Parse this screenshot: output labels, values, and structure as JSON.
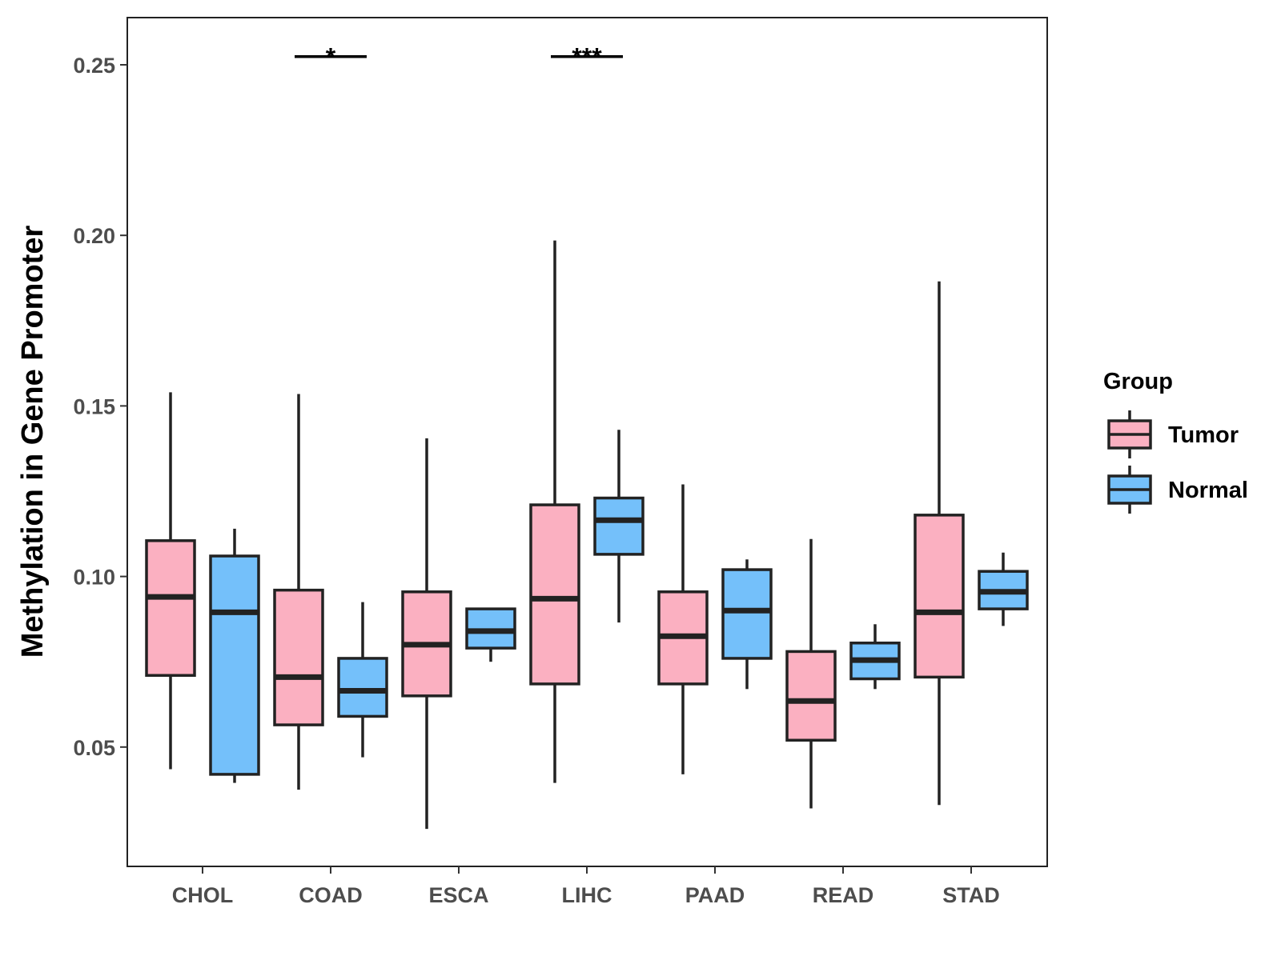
{
  "chart_data": {
    "type": "boxplot",
    "title": "",
    "xlabel": "",
    "ylabel": "Methylation in Gene Promoter",
    "ylim": [
      0.015,
      0.262
    ],
    "yticks": [
      "0.05",
      "0.10",
      "0.15",
      "0.20",
      "0.25"
    ],
    "categories": [
      "CHOL",
      "COAD",
      "ESCA",
      "LIHC",
      "PAAD",
      "READ",
      "STAD"
    ],
    "legend": {
      "title": "Group",
      "position": "right",
      "entries": [
        {
          "name": "Tumor",
          "color": "#fbb0c1"
        },
        {
          "name": "Normal",
          "color": "#74c0fa"
        }
      ]
    },
    "series": [
      {
        "name": "Tumor",
        "color": "#fbb0c1",
        "boxes": [
          {
            "category": "CHOL",
            "min": 0.0435,
            "q1": 0.071,
            "median": 0.094,
            "q3": 0.1105,
            "max": 0.154
          },
          {
            "category": "COAD",
            "min": 0.0375,
            "q1": 0.0565,
            "median": 0.0705,
            "q3": 0.096,
            "max": 0.1535
          },
          {
            "category": "ESCA",
            "min": 0.026,
            "q1": 0.065,
            "median": 0.08,
            "q3": 0.0955,
            "max": 0.1405
          },
          {
            "category": "LIHC",
            "min": 0.0395,
            "q1": 0.0685,
            "median": 0.0935,
            "q3": 0.121,
            "max": 0.1985
          },
          {
            "category": "PAAD",
            "min": 0.042,
            "q1": 0.0685,
            "median": 0.0825,
            "q3": 0.0955,
            "max": 0.127
          },
          {
            "category": "READ",
            "min": 0.032,
            "q1": 0.052,
            "median": 0.0635,
            "q3": 0.078,
            "max": 0.111
          },
          {
            "category": "STAD",
            "min": 0.033,
            "q1": 0.0705,
            "median": 0.0895,
            "q3": 0.118,
            "max": 0.1865
          }
        ]
      },
      {
        "name": "Normal",
        "color": "#74c0fa",
        "boxes": [
          {
            "category": "CHOL",
            "min": 0.0395,
            "q1": 0.042,
            "median": 0.0895,
            "q3": 0.106,
            "max": 0.114
          },
          {
            "category": "COAD",
            "min": 0.047,
            "q1": 0.059,
            "median": 0.0665,
            "q3": 0.076,
            "max": 0.0925
          },
          {
            "category": "ESCA",
            "min": 0.075,
            "q1": 0.079,
            "median": 0.084,
            "q3": 0.0905,
            "max": 0.0905
          },
          {
            "category": "LIHC",
            "min": 0.0865,
            "q1": 0.1065,
            "median": 0.1165,
            "q3": 0.123,
            "max": 0.143
          },
          {
            "category": "PAAD",
            "min": 0.067,
            "q1": 0.076,
            "median": 0.09,
            "q3": 0.102,
            "max": 0.105
          },
          {
            "category": "READ",
            "min": 0.067,
            "q1": 0.07,
            "median": 0.0755,
            "q3": 0.0805,
            "max": 0.086
          },
          {
            "category": "STAD",
            "min": 0.0855,
            "q1": 0.0905,
            "median": 0.0955,
            "q3": 0.1015,
            "max": 0.107
          }
        ]
      }
    ],
    "annotations": [
      {
        "category": "COAD",
        "label": "*",
        "y": 0.251
      },
      {
        "category": "LIHC",
        "label": "***",
        "y": 0.251
      }
    ]
  }
}
